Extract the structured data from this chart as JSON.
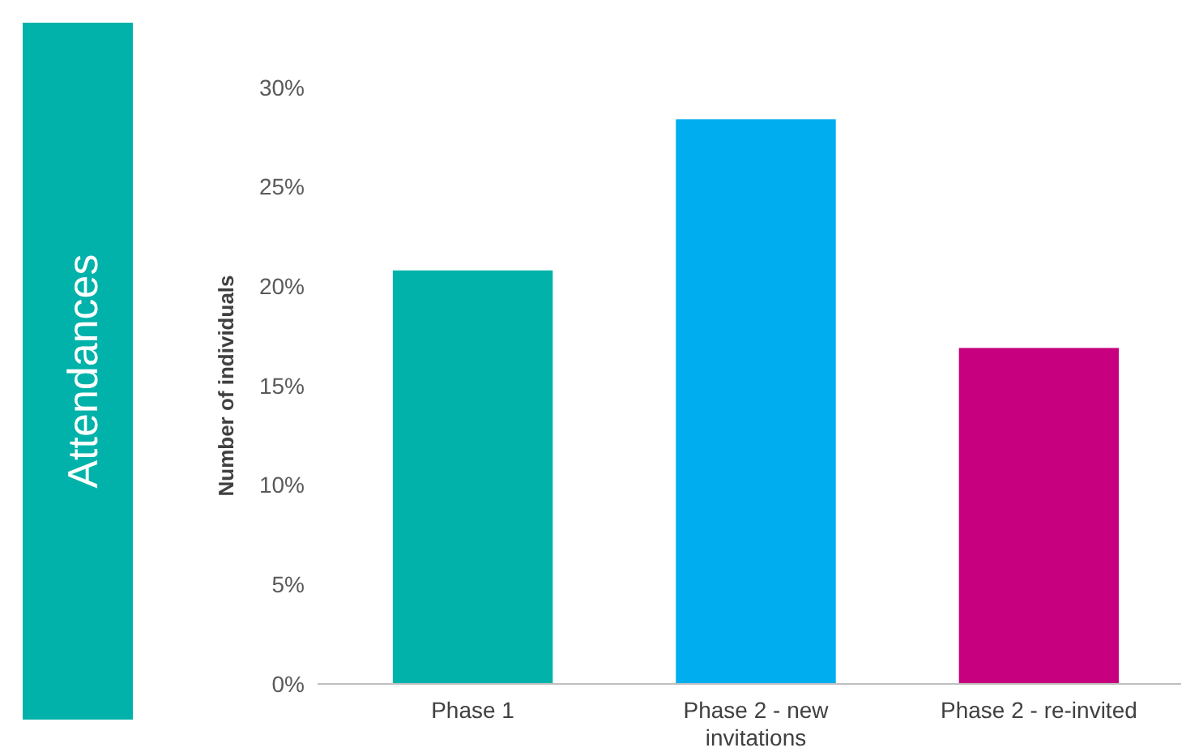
{
  "chart_data": {
    "type": "bar",
    "title": "Attendances",
    "ylabel": "Number of individuals",
    "categories": [
      "Phase 1",
      "Phase 2 - new invitations",
      "Phase 2 - re-invited"
    ],
    "values": [
      20.8,
      28.4,
      16.9
    ],
    "colors": [
      "#00b2a9",
      "#00aeef",
      "#c6007e"
    ],
    "ylim": [
      0,
      30
    ],
    "yticks": [
      {
        "value": 0,
        "label": "0%"
      },
      {
        "value": 5,
        "label": "5%"
      },
      {
        "value": 10,
        "label": "10%"
      },
      {
        "value": 15,
        "label": "15%"
      },
      {
        "value": 20,
        "label": "20%"
      },
      {
        "value": 25,
        "label": "25%"
      },
      {
        "value": 30,
        "label": "30%"
      }
    ],
    "grid": false
  }
}
